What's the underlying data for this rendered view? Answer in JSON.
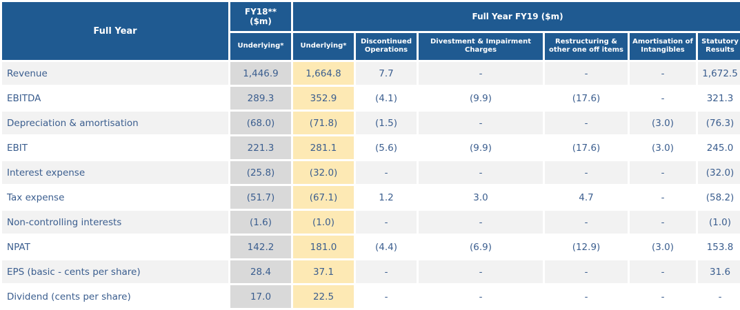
{
  "chart_data": {
    "type": "table",
    "header": {
      "corner": "Full Year",
      "fy18_group": "FY18**\n($m)",
      "fy19_group": "Full Year FY19 ($m)",
      "subheaders": [
        "Underlying*",
        "Underlying*",
        "Discontinued Operations",
        "Divestment & Impairment Charges",
        "Restructuring & other one off items",
        "Amortisation of Intangibles",
        "Statutory Results"
      ]
    },
    "rows": [
      {
        "label": "Revenue",
        "values": [
          "1,446.9",
          "1,664.8",
          "7.7",
          "-",
          "-",
          "-",
          "1,672.5"
        ]
      },
      {
        "label": "EBITDA",
        "values": [
          "289.3",
          "352.9",
          "(4.1)",
          "(9.9)",
          "(17.6)",
          "-",
          "321.3"
        ]
      },
      {
        "label": "Depreciation & amortisation",
        "values": [
          "(68.0)",
          "(71.8)",
          "(1.5)",
          "-",
          "-",
          "(3.0)",
          "(76.3)"
        ]
      },
      {
        "label": "EBIT",
        "values": [
          "221.3",
          "281.1",
          "(5.6)",
          "(9.9)",
          "(17.6)",
          "(3.0)",
          "245.0"
        ]
      },
      {
        "label": "Interest expense",
        "values": [
          "(25.8)",
          "(32.0)",
          "-",
          "-",
          "-",
          "-",
          "(32.0)"
        ]
      },
      {
        "label": "Tax expense",
        "values": [
          "(51.7)",
          "(67.1)",
          "1.2",
          "3.0",
          "4.7",
          "-",
          "(58.2)"
        ]
      },
      {
        "label": "Non-controlling interests",
        "values": [
          "(1.6)",
          "(1.0)",
          "-",
          "-",
          "-",
          "-",
          "(1.0)"
        ]
      },
      {
        "label": "NPAT",
        "values": [
          "142.2",
          "181.0",
          "(4.4)",
          "(6.9)",
          "(12.9)",
          "(3.0)",
          "153.8"
        ]
      },
      {
        "label": "EPS (basic - cents per share)",
        "values": [
          "28.4",
          "37.1",
          "-",
          "-",
          "-",
          "-",
          "31.6"
        ]
      },
      {
        "label": "Dividend (cents per share)",
        "values": [
          "17.0",
          "22.5",
          "-",
          "-",
          "-",
          "-",
          "-"
        ]
      }
    ]
  }
}
